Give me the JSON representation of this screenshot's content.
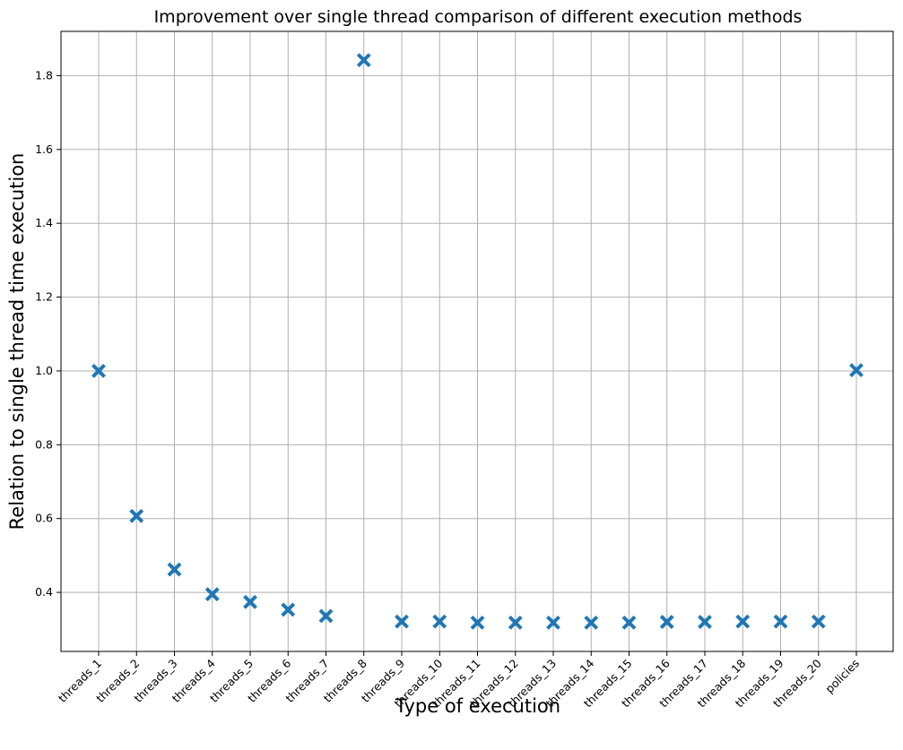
{
  "chart_data": {
    "type": "scatter",
    "title": "Improvement over single thread comparison of different execution methods",
    "xlabel": "Type of execution",
    "ylabel": "Relation to single thread time execution",
    "categories": [
      "threads_1",
      "threads_2",
      "threads_3",
      "threads_4",
      "threads_5",
      "threads_6",
      "threads_7",
      "threads_8",
      "threads_9",
      "threads_10",
      "threads_11",
      "threads_12",
      "threads_13",
      "threads_14",
      "threads_15",
      "threads_16",
      "threads_17",
      "threads_18",
      "threads_19",
      "threads_20",
      "policies"
    ],
    "values": [
      1.0,
      0.607,
      0.462,
      0.395,
      0.374,
      0.353,
      0.336,
      1.842,
      0.321,
      0.321,
      0.318,
      0.318,
      0.318,
      0.318,
      0.318,
      0.32,
      0.32,
      0.321,
      0.321,
      0.321,
      1.002
    ],
    "ylim": [
      0.24,
      1.92
    ],
    "yticks": [
      0.4,
      0.6,
      0.8,
      1.0,
      1.2,
      1.4,
      1.6,
      1.8
    ],
    "ytick_labels": [
      "0.4",
      "0.6",
      "0.8",
      "1.0",
      "1.2",
      "1.4",
      "1.6",
      "1.8"
    ],
    "grid": true,
    "marker": "x",
    "colors": {
      "marker": "#1f77b4",
      "grid": "#b0b0b0",
      "axes": "#000000"
    }
  }
}
